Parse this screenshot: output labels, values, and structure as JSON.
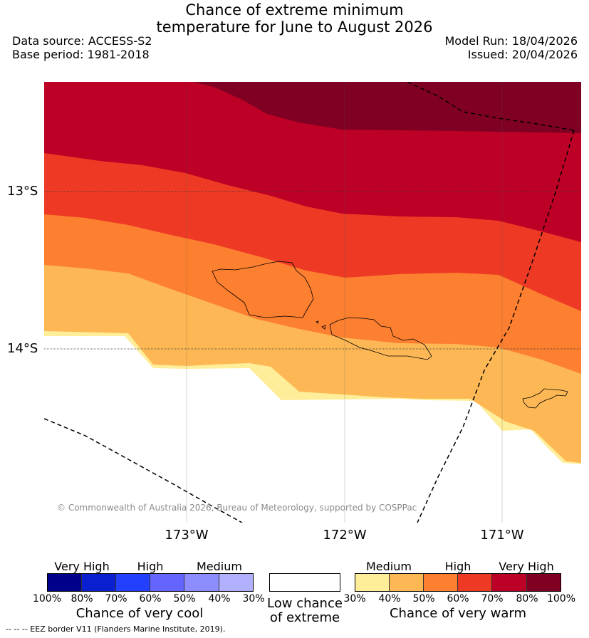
{
  "header": {
    "title_line1": "Chance of extreme minimum",
    "title_line2": "temperature for June to August 2026",
    "data_source": "Data source: ACCESS-S2",
    "base_period": "Base period: 1981-2018",
    "model_run": "Model Run: 18/04/2026",
    "issued": "Issued: 20/04/2026"
  },
  "map": {
    "lat_labels": [
      "13°S",
      "14°S"
    ],
    "lon_labels": [
      "173°W",
      "172°W",
      "171°W"
    ],
    "copyright": "© Commonwealth of Australia 2026, Bureau of Meteorology, supported by COSPPac",
    "colors": {
      "very_warm_80_100": "#7f0022",
      "very_warm_70_80": "#bd0026",
      "high_60_70": "#ee3a24",
      "high_50_60": "#fd7f30",
      "medium_40_50": "#fdb855",
      "medium_30_40": "#ffee99"
    }
  },
  "legend": {
    "cool": {
      "headers": [
        "Very High",
        "High",
        "Medium"
      ],
      "ticks": [
        "100%",
        "80%",
        "70%",
        "60%",
        "50%",
        "40%",
        "30%"
      ],
      "colors": [
        "#00008b",
        "#0a1fd0",
        "#2340ff",
        "#6464ff",
        "#8d8dff",
        "#b0b0ff"
      ],
      "title": "Chance of very cool"
    },
    "neutral": {
      "title_line1": "Low chance",
      "title_line2": "of extreme",
      "color": "#ffffff"
    },
    "warm": {
      "headers": [
        "Medium",
        "High",
        "Very High"
      ],
      "ticks": [
        "30%",
        "40%",
        "50%",
        "60%",
        "70%",
        "80%",
        "100%"
      ],
      "colors": [
        "#ffee99",
        "#fdb855",
        "#fd7f30",
        "#ee3a24",
        "#bd0026",
        "#7f0022"
      ],
      "title": "Chance of very warm"
    }
  },
  "footer": "--  --  -- EEZ border V11 (Flanders Marine Institute, 2019)."
}
